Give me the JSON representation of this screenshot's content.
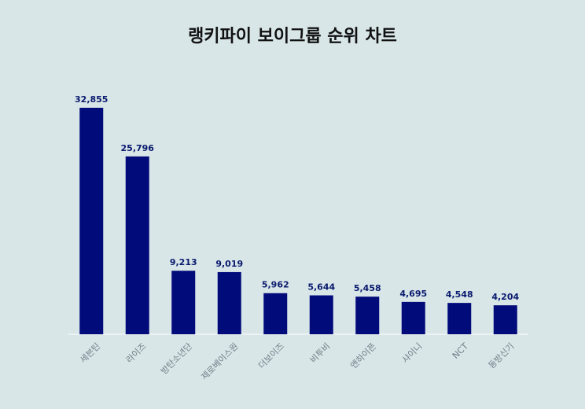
{
  "chart_data": {
    "type": "bar",
    "title": "랭키파이 보이그룹 순위 차트",
    "categories": [
      "세븐틴",
      "라이즈",
      "방탄소년단",
      "제로베이스원",
      "더보이즈",
      "비투비",
      "엔하이픈",
      "샤이니",
      "NCT",
      "동방신기"
    ],
    "values": [
      32855,
      25796,
      9213,
      9019,
      5962,
      5644,
      5458,
      4695,
      4548,
      4204
    ],
    "value_labels": [
      "32,855",
      "25,796",
      "9,213",
      "9,019",
      "5,962",
      "5,644",
      "5,458",
      "4,695",
      "4,548",
      "4,204"
    ],
    "xlabel": "",
    "ylabel": "",
    "ylim": [
      0,
      32855
    ],
    "grid": false,
    "legend": "none",
    "colors": {
      "bar": "#020b7a",
      "value_label": "#0a1a6e",
      "tick_label": "#6f7f86",
      "baseline": "#ffffff",
      "background": "#d8e6e8"
    }
  }
}
